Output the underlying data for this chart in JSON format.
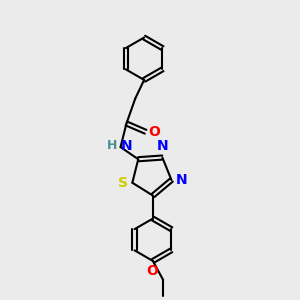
{
  "background_color": "#ebebeb",
  "bond_color": "#000000",
  "atom_colors": {
    "O": "#ff0000",
    "N": "#0000ff",
    "S": "#cccc00",
    "H": "#4a9090",
    "C": "#000000"
  },
  "figsize": [
    3.0,
    3.0
  ],
  "dpi": 100
}
